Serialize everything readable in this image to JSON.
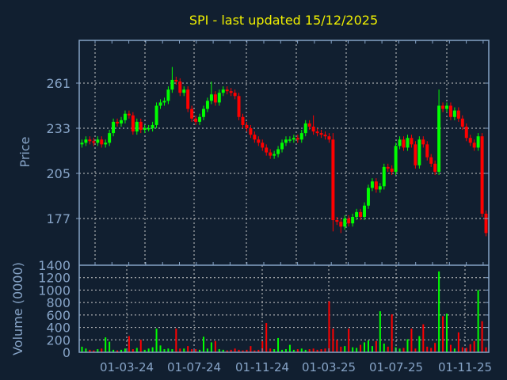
{
  "chart_data": {
    "type": "candlestick",
    "title": "SPI - last updated 15/12/2025",
    "ylabel": "Price",
    "volume_label": "Volume (0000)",
    "price_ticks": [
      "261",
      "233",
      "205",
      "177"
    ],
    "price_tick_values": [
      261,
      233,
      205,
      177
    ],
    "ylim": [
      149,
      288
    ],
    "volume_ticks": [
      "0",
      "200",
      "400",
      "600",
      "800",
      "1000",
      "1200",
      "1400"
    ],
    "volume_ylim": [
      0,
      1400
    ],
    "x_ticks": [
      "01-03-24",
      "01-07-24",
      "01-11-24",
      "01-03-25",
      "01-07-25",
      "01-11-25"
    ],
    "interval": "weekly (approx.)",
    "open_first": 223,
    "wick_default": 2,
    "close": [
      224,
      226,
      225,
      224,
      226,
      223,
      224,
      230,
      237,
      236,
      238,
      242,
      241,
      231,
      237,
      232,
      233,
      233,
      235,
      247,
      249,
      250,
      257,
      263,
      262,
      255,
      257,
      245,
      239,
      237,
      240,
      245,
      250,
      254,
      249,
      255,
      257,
      256,
      255,
      253,
      240,
      235,
      233,
      229,
      226,
      224,
      221,
      218,
      216,
      217,
      220,
      224,
      226,
      226,
      227,
      226,
      230,
      236,
      234,
      231,
      230,
      229,
      228,
      226,
      176,
      175,
      172,
      177,
      174,
      178,
      181,
      178,
      185,
      196,
      200,
      195,
      197,
      209,
      208,
      206,
      222,
      226,
      221,
      227,
      223,
      210,
      226,
      223,
      215,
      211,
      206,
      247,
      245,
      247,
      240,
      244,
      239,
      234,
      227,
      224,
      221,
      228,
      180,
      168
    ],
    "high_overrides": {
      "23": 271,
      "33": 262,
      "59": 241,
      "91": 257,
      "64": 230
    },
    "low_overrides": {
      "64": 169,
      "66": 168,
      "103": 166
    },
    "volume": [
      90,
      60,
      40,
      30,
      50,
      60,
      240,
      170,
      40,
      30,
      40,
      60,
      260,
      50,
      70,
      200,
      40,
      60,
      80,
      380,
      110,
      50,
      60,
      50,
      380,
      60,
      60,
      100,
      50,
      50,
      40,
      250,
      60,
      160,
      180,
      50,
      40,
      30,
      40,
      60,
      40,
      30,
      40,
      100,
      30,
      40,
      180,
      470,
      60,
      50,
      230,
      40,
      50,
      120,
      40,
      50,
      60,
      40,
      50,
      60,
      40,
      50,
      60,
      820,
      380,
      200,
      90,
      100,
      380,
      80,
      70,
      120,
      160,
      190,
      100,
      180,
      660,
      140,
      90,
      610,
      80,
      60,
      70,
      210,
      380,
      60,
      260,
      450,
      90,
      70,
      150,
      1300,
      580,
      620,
      120,
      60,
      320,
      80,
      70,
      130,
      180,
      1000,
      500,
      80
    ],
    "colors": {
      "up": "#00ff00",
      "down": "#ff0000",
      "background": "#111f30",
      "axis": "#86a3c6",
      "grid": "#c8c8c8",
      "title": "#f0f000"
    }
  }
}
